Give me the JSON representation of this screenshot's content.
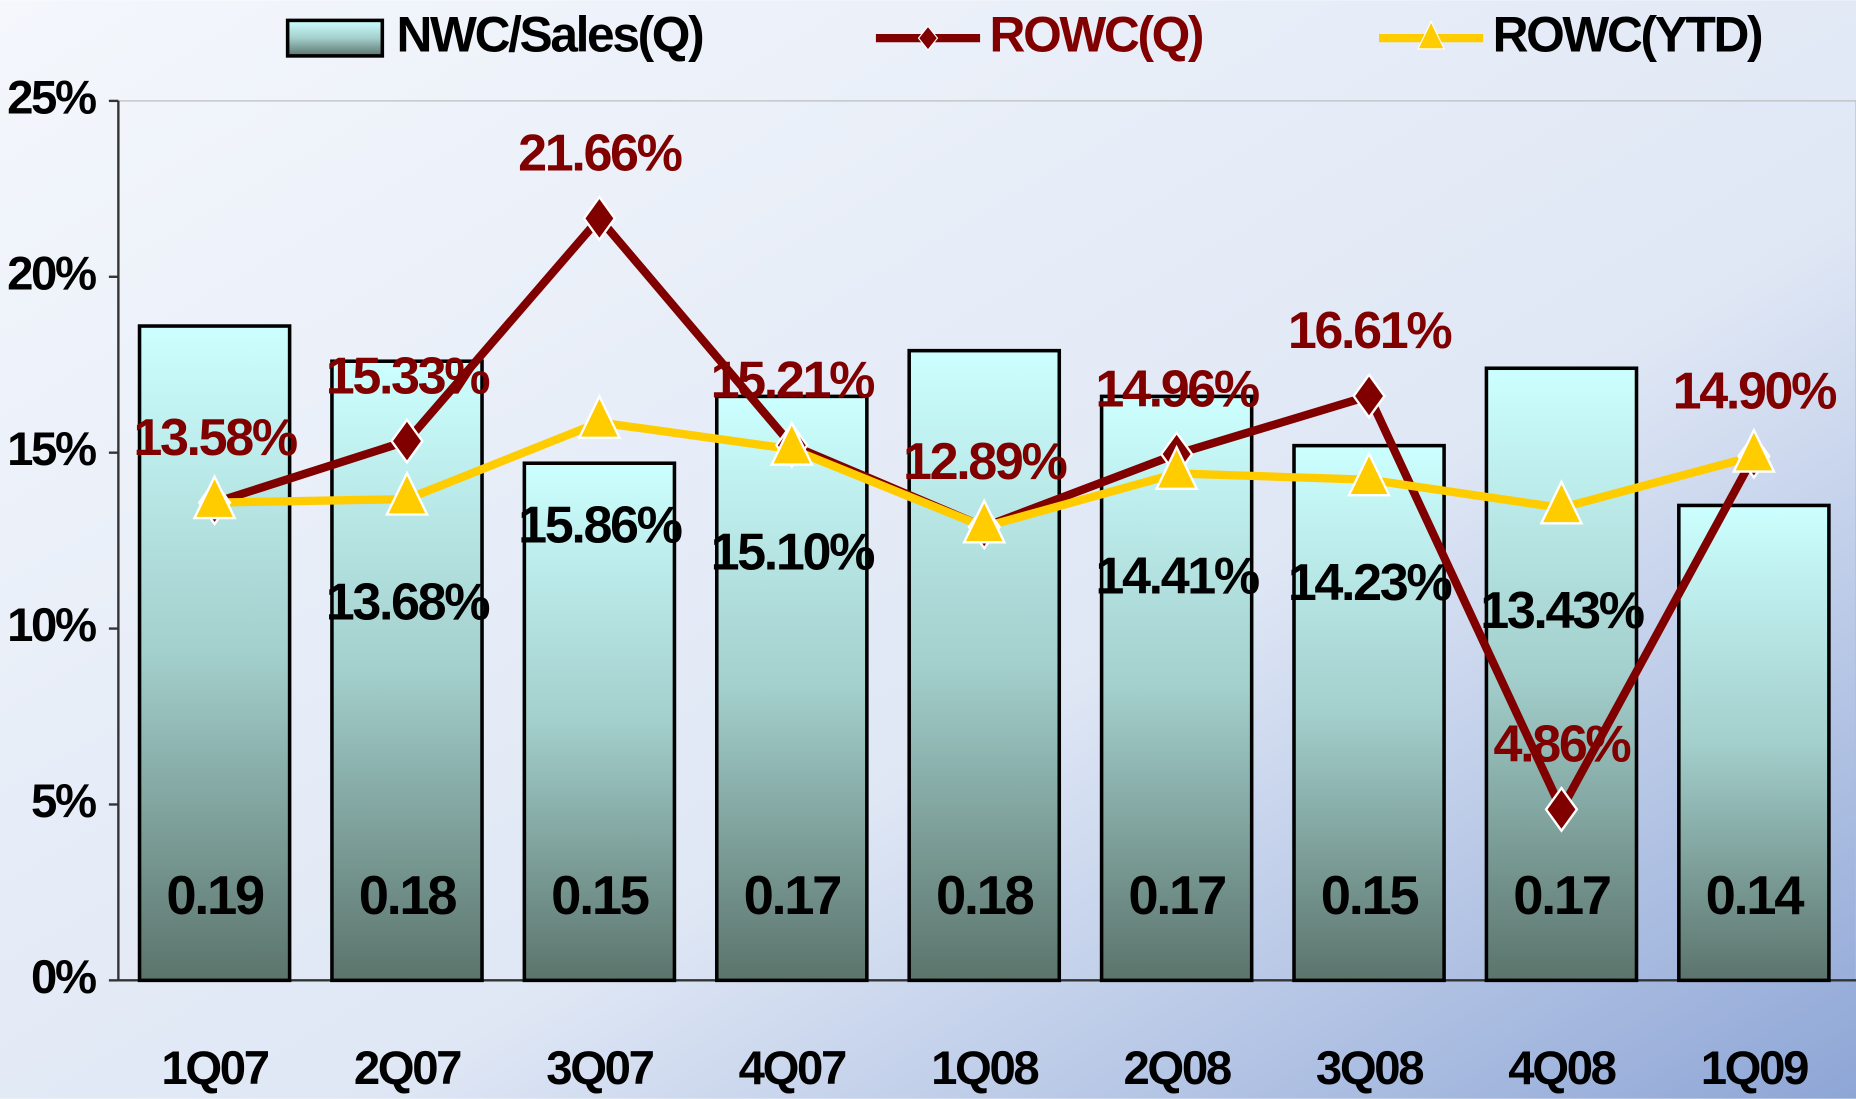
{
  "chart_data": {
    "type": "bar",
    "categories": [
      "1Q07",
      "2Q07",
      "3Q07",
      "4Q07",
      "1Q08",
      "2Q08",
      "3Q08",
      "4Q08",
      "1Q09"
    ],
    "series": [
      {
        "name": "NWC/Sales(Q)",
        "type": "bar",
        "color": "#ccffff",
        "values": [
          18.6,
          17.6,
          14.7,
          16.6,
          17.9,
          16.6,
          15.2,
          17.4,
          13.5
        ],
        "value_labels": [
          "0.19",
          "0.18",
          "0.15",
          "0.17",
          "0.18",
          "0.17",
          "0.15",
          "0.17",
          "0.14"
        ]
      },
      {
        "name": "ROWC(Q)",
        "type": "line",
        "marker": "diamond",
        "color": "#800000",
        "values": [
          13.58,
          15.33,
          21.66,
          15.21,
          12.89,
          14.96,
          16.61,
          4.86,
          14.9
        ],
        "value_labels": [
          "13.58%",
          "15.33%",
          "21.66%",
          "15.21%",
          "12.89%",
          "14.96%",
          "16.61%",
          "4.86%",
          "14.90%"
        ]
      },
      {
        "name": "ROWC(YTD)",
        "type": "line",
        "marker": "triangle",
        "color": "#ffcc00",
        "values": [
          13.58,
          13.68,
          15.86,
          15.1,
          12.89,
          14.41,
          14.23,
          13.43,
          14.9
        ],
        "value_labels": [
          null,
          "13.68%",
          "15.86%",
          "15.10%",
          null,
          "14.41%",
          "14.23%",
          "13.43%",
          null
        ]
      }
    ],
    "ylim": [
      0,
      25
    ],
    "yticks": [
      {
        "value": 0,
        "label": "0%"
      },
      {
        "value": 5,
        "label": "5%"
      },
      {
        "value": 10,
        "label": "10%"
      },
      {
        "value": 15,
        "label": "15%"
      },
      {
        "value": 20,
        "label": "20%"
      },
      {
        "value": 25,
        "label": "25%"
      }
    ],
    "legend": "top"
  }
}
